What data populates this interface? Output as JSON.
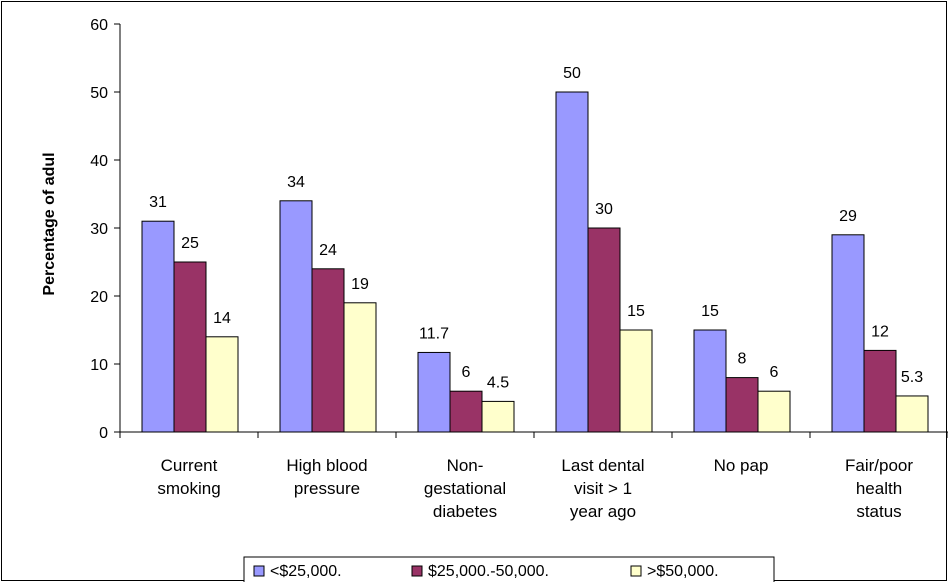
{
  "chart_data": {
    "type": "bar",
    "title": "",
    "xlabel": "",
    "ylabel": "Percentage of adul",
    "ylim": [
      0,
      60
    ],
    "yticks": [
      0,
      10,
      20,
      30,
      40,
      50,
      60
    ],
    "grid": false,
    "legend_position": "bottom",
    "categories": [
      [
        "Current",
        "smoking"
      ],
      [
        "High blood",
        "pressure"
      ],
      [
        "Non-",
        "gestational",
        "diabetes"
      ],
      [
        "Last dental",
        "visit > 1",
        "year ago"
      ],
      [
        "No pap"
      ],
      [
        "Fair/poor",
        "health",
        "status"
      ]
    ],
    "series": [
      {
        "name": "<$25,000.",
        "color": "#9999ff",
        "values": [
          31,
          34,
          11.7,
          50,
          15,
          29
        ],
        "labels": [
          "31",
          "34",
          "11.7",
          "50",
          "15",
          "29"
        ]
      },
      {
        "name": "$25,000.-50,000.",
        "color": "#993366",
        "values": [
          25,
          24,
          6,
          30,
          8,
          12
        ],
        "labels": [
          "25",
          "24",
          "6",
          "30",
          "8",
          "12"
        ]
      },
      {
        "name": ">$50,000.",
        "color": "#ffffcc",
        "values": [
          14,
          19,
          4.5,
          15,
          6,
          5.3
        ],
        "labels": [
          "14",
          "19",
          "4.5",
          "15",
          "6",
          "5.3"
        ]
      }
    ]
  }
}
